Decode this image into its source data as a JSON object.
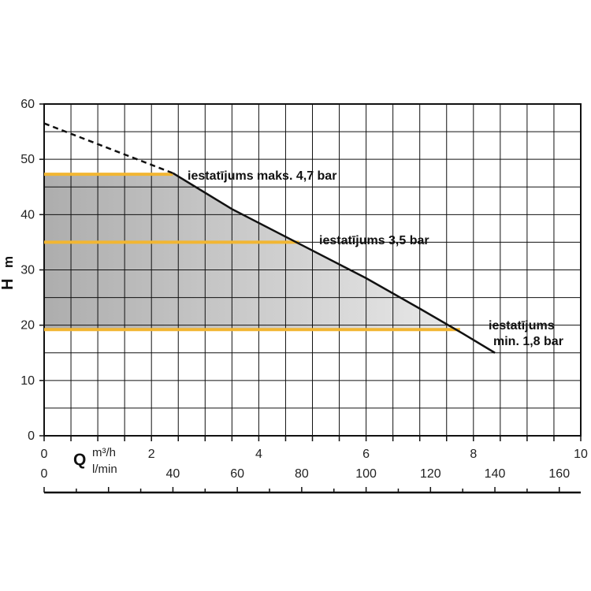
{
  "chart_data": {
    "type": "line",
    "ylabel": "H",
    "ylabel_unit": "m",
    "xlabel": "Q",
    "x_units_top": "m³/h",
    "x_units_bottom": "l/min",
    "xlim": [
      0,
      10
    ],
    "ylim": [
      0,
      60
    ],
    "x_ticks_m3h": [
      "0",
      "2",
      "4",
      "6",
      "8",
      "10"
    ],
    "x_ticks_lmin": [
      "0",
      "40",
      "60",
      "80",
      "100",
      "120",
      "140",
      "160"
    ],
    "x_ticks_lmin_values": [
      0,
      40,
      60,
      80,
      100,
      120,
      140,
      160
    ],
    "y_ticks": [
      "60",
      "50",
      "40",
      "30",
      "20",
      "10",
      "0"
    ],
    "y_tick_values": [
      60,
      50,
      40,
      30,
      20,
      10,
      0
    ],
    "grid": true,
    "colors": {
      "curve": "#111111",
      "setting_line": "#f2b632",
      "shaded_region": "#a9a9a9",
      "grid": "#111111"
    },
    "pump_curve": {
      "dashed": {
        "x": [
          0,
          2.4
        ],
        "y": [
          56.5,
          47.5
        ]
      },
      "solid": {
        "x": [
          2.4,
          3.5,
          4.8,
          6,
          7,
          7.8,
          8.4
        ],
        "y": [
          47.5,
          41,
          34.5,
          28.5,
          23,
          18.5,
          15
        ]
      }
    },
    "settings": [
      {
        "label": "iestatījums maks. 4,7 bar",
        "h": 47.3,
        "x_end": 2.4
      },
      {
        "label": "iestatījums 3,5 bar",
        "h": 35,
        "x_end": 4.75
      },
      {
        "label": "iestatījums",
        "label_line2": "min. 1,8 bar",
        "h": 19.2,
        "x_end": 7.75
      }
    ]
  }
}
